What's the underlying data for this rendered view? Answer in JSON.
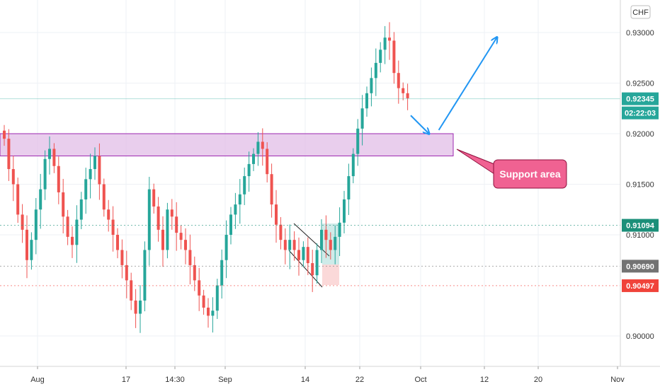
{
  "currency_label": "CHF",
  "colors": {
    "up": "#26a69a",
    "down": "#ef5350",
    "support_fill": "#e1bee7",
    "support_stroke": "#9c27b0",
    "annotation_fill": "#f06292",
    "arrow": "#2196f3",
    "last_price_badge": "#26a69a",
    "green_level_badge": "#1b8f79",
    "gray_level_badge": "#737373",
    "red_level_badge": "#f0433a"
  },
  "annotation": {
    "text": "Support area"
  },
  "price_badges": {
    "last_price": "0.92345",
    "countdown": "02:22:03",
    "green_level": "0.91094",
    "gray_level": "0.90690",
    "red_level": "0.90497"
  },
  "chart_data": {
    "type": "candlestick",
    "y_axis": {
      "ticks": [
        "0.93000",
        "0.92500",
        "0.92000",
        "0.91500",
        "0.91000",
        "0.90000"
      ],
      "tick_values": [
        0.93,
        0.925,
        0.92,
        0.915,
        0.91,
        0.9
      ],
      "range": [
        0.8985,
        0.9325
      ]
    },
    "x_axis": {
      "ticks": [
        "Aug",
        "17",
        "14:30",
        "Sep",
        "14",
        "22",
        "Oct",
        "12",
        "20",
        "Nov"
      ]
    },
    "series": [
      {
        "close": [
          0.9195,
          0.9165,
          0.915,
          0.912,
          0.9105,
          0.9075,
          0.9095,
          0.9125,
          0.9145,
          0.9175,
          0.9185,
          0.9168,
          0.9142,
          0.9118,
          0.9098,
          0.909,
          0.9115,
          0.9135,
          0.9155,
          0.9165,
          0.9178,
          0.915,
          0.9125,
          0.9115,
          0.91,
          0.9085,
          0.907,
          0.9055,
          0.9035,
          0.9022,
          0.9035,
          0.9085,
          0.9145,
          0.9128,
          0.9105,
          0.9085,
          0.9125,
          0.9118,
          0.9102,
          0.9095,
          0.9085,
          0.907,
          0.9055,
          0.904,
          0.9028,
          0.902,
          0.9025,
          0.905,
          0.9075,
          0.91,
          0.912,
          0.913,
          0.914,
          0.9158,
          0.917,
          0.918,
          0.9192,
          0.9185,
          0.916,
          0.913,
          0.911,
          0.9095,
          0.9085,
          0.9095,
          0.9085,
          0.9075,
          0.9088,
          0.9072,
          0.906,
          0.9085,
          0.9105,
          0.9095,
          0.9085,
          0.9098,
          0.9112,
          0.9135,
          0.9158,
          0.918,
          0.9205,
          0.9225,
          0.924,
          0.9255,
          0.927,
          0.9283,
          0.9295,
          0.9292,
          0.926,
          0.9245,
          0.924,
          0.9235
        ]
      }
    ],
    "levels": [
      {
        "name": "0.92345",
        "value": 0.92345
      },
      {
        "name": "0.91094",
        "value": 0.91094
      },
      {
        "name": "0.90690",
        "value": 0.9069
      },
      {
        "name": "0.90497",
        "value": 0.90497
      }
    ],
    "support_zone": {
      "top": 0.92,
      "bottom": 0.9178
    },
    "projected_path": [
      {
        "t": 90,
        "y": 0.9232
      },
      {
        "t": 94,
        "y": 0.9198
      },
      {
        "t": 109,
        "y": 0.9295
      }
    ]
  }
}
